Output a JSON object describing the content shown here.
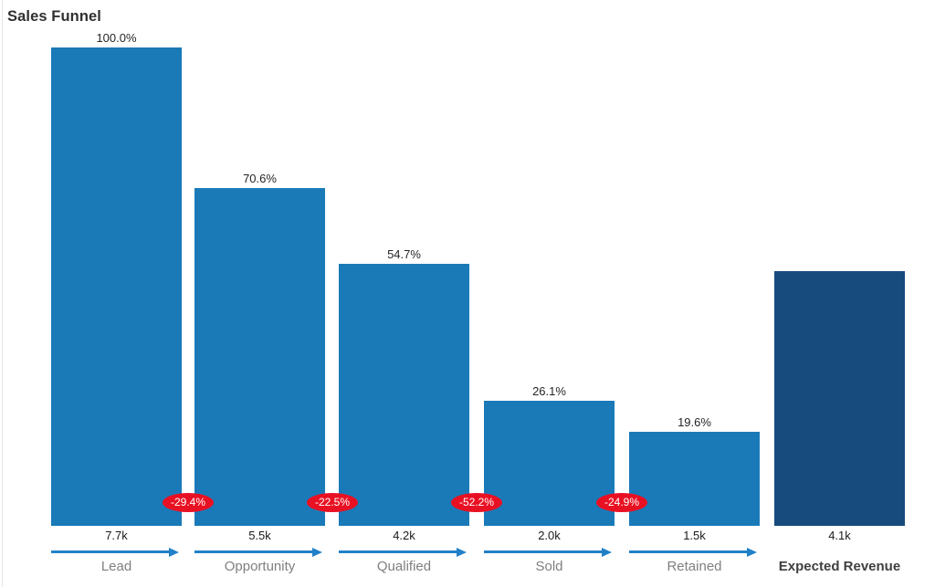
{
  "title": "Sales Funnel",
  "colors": {
    "bar": "#1A7AB8",
    "final_bar": "#174B7E",
    "badge": "#E81123",
    "badge_text": "#FFFFFF",
    "arrow": "#2180C8",
    "title_text": "#303030",
    "pct_text": "#252525",
    "value_text": "#1A1A1A",
    "stage_label": "#7F7F7F",
    "final_label": "#404040"
  },
  "chart_data": {
    "type": "bar",
    "subtype": "funnel",
    "title": "Sales Funnel",
    "grid": false,
    "legend": false,
    "ylim": [
      0,
      7.7
    ],
    "stages": [
      {
        "label": "Lead",
        "value": 7.7,
        "value_label": "7.7k",
        "pct_label": "100.0%",
        "final": false
      },
      {
        "label": "Opportunity",
        "value": 5.5,
        "value_label": "5.5k",
        "pct_label": "70.6%",
        "final": false
      },
      {
        "label": "Qualified",
        "value": 4.2,
        "value_label": "4.2k",
        "pct_label": "54.7%",
        "final": false
      },
      {
        "label": "Sold",
        "value": 2.0,
        "value_label": "2.0k",
        "pct_label": "26.1%",
        "final": false
      },
      {
        "label": "Retained",
        "value": 1.5,
        "value_label": "1.5k",
        "pct_label": "19.6%",
        "final": false
      },
      {
        "label": "Expected Revenue",
        "value": 4.1,
        "value_label": "4.1k",
        "pct_label": "",
        "final": true
      }
    ],
    "conversions": [
      "-29.4%",
      "-22.5%",
      "-52.2%",
      "-24.9%"
    ]
  }
}
